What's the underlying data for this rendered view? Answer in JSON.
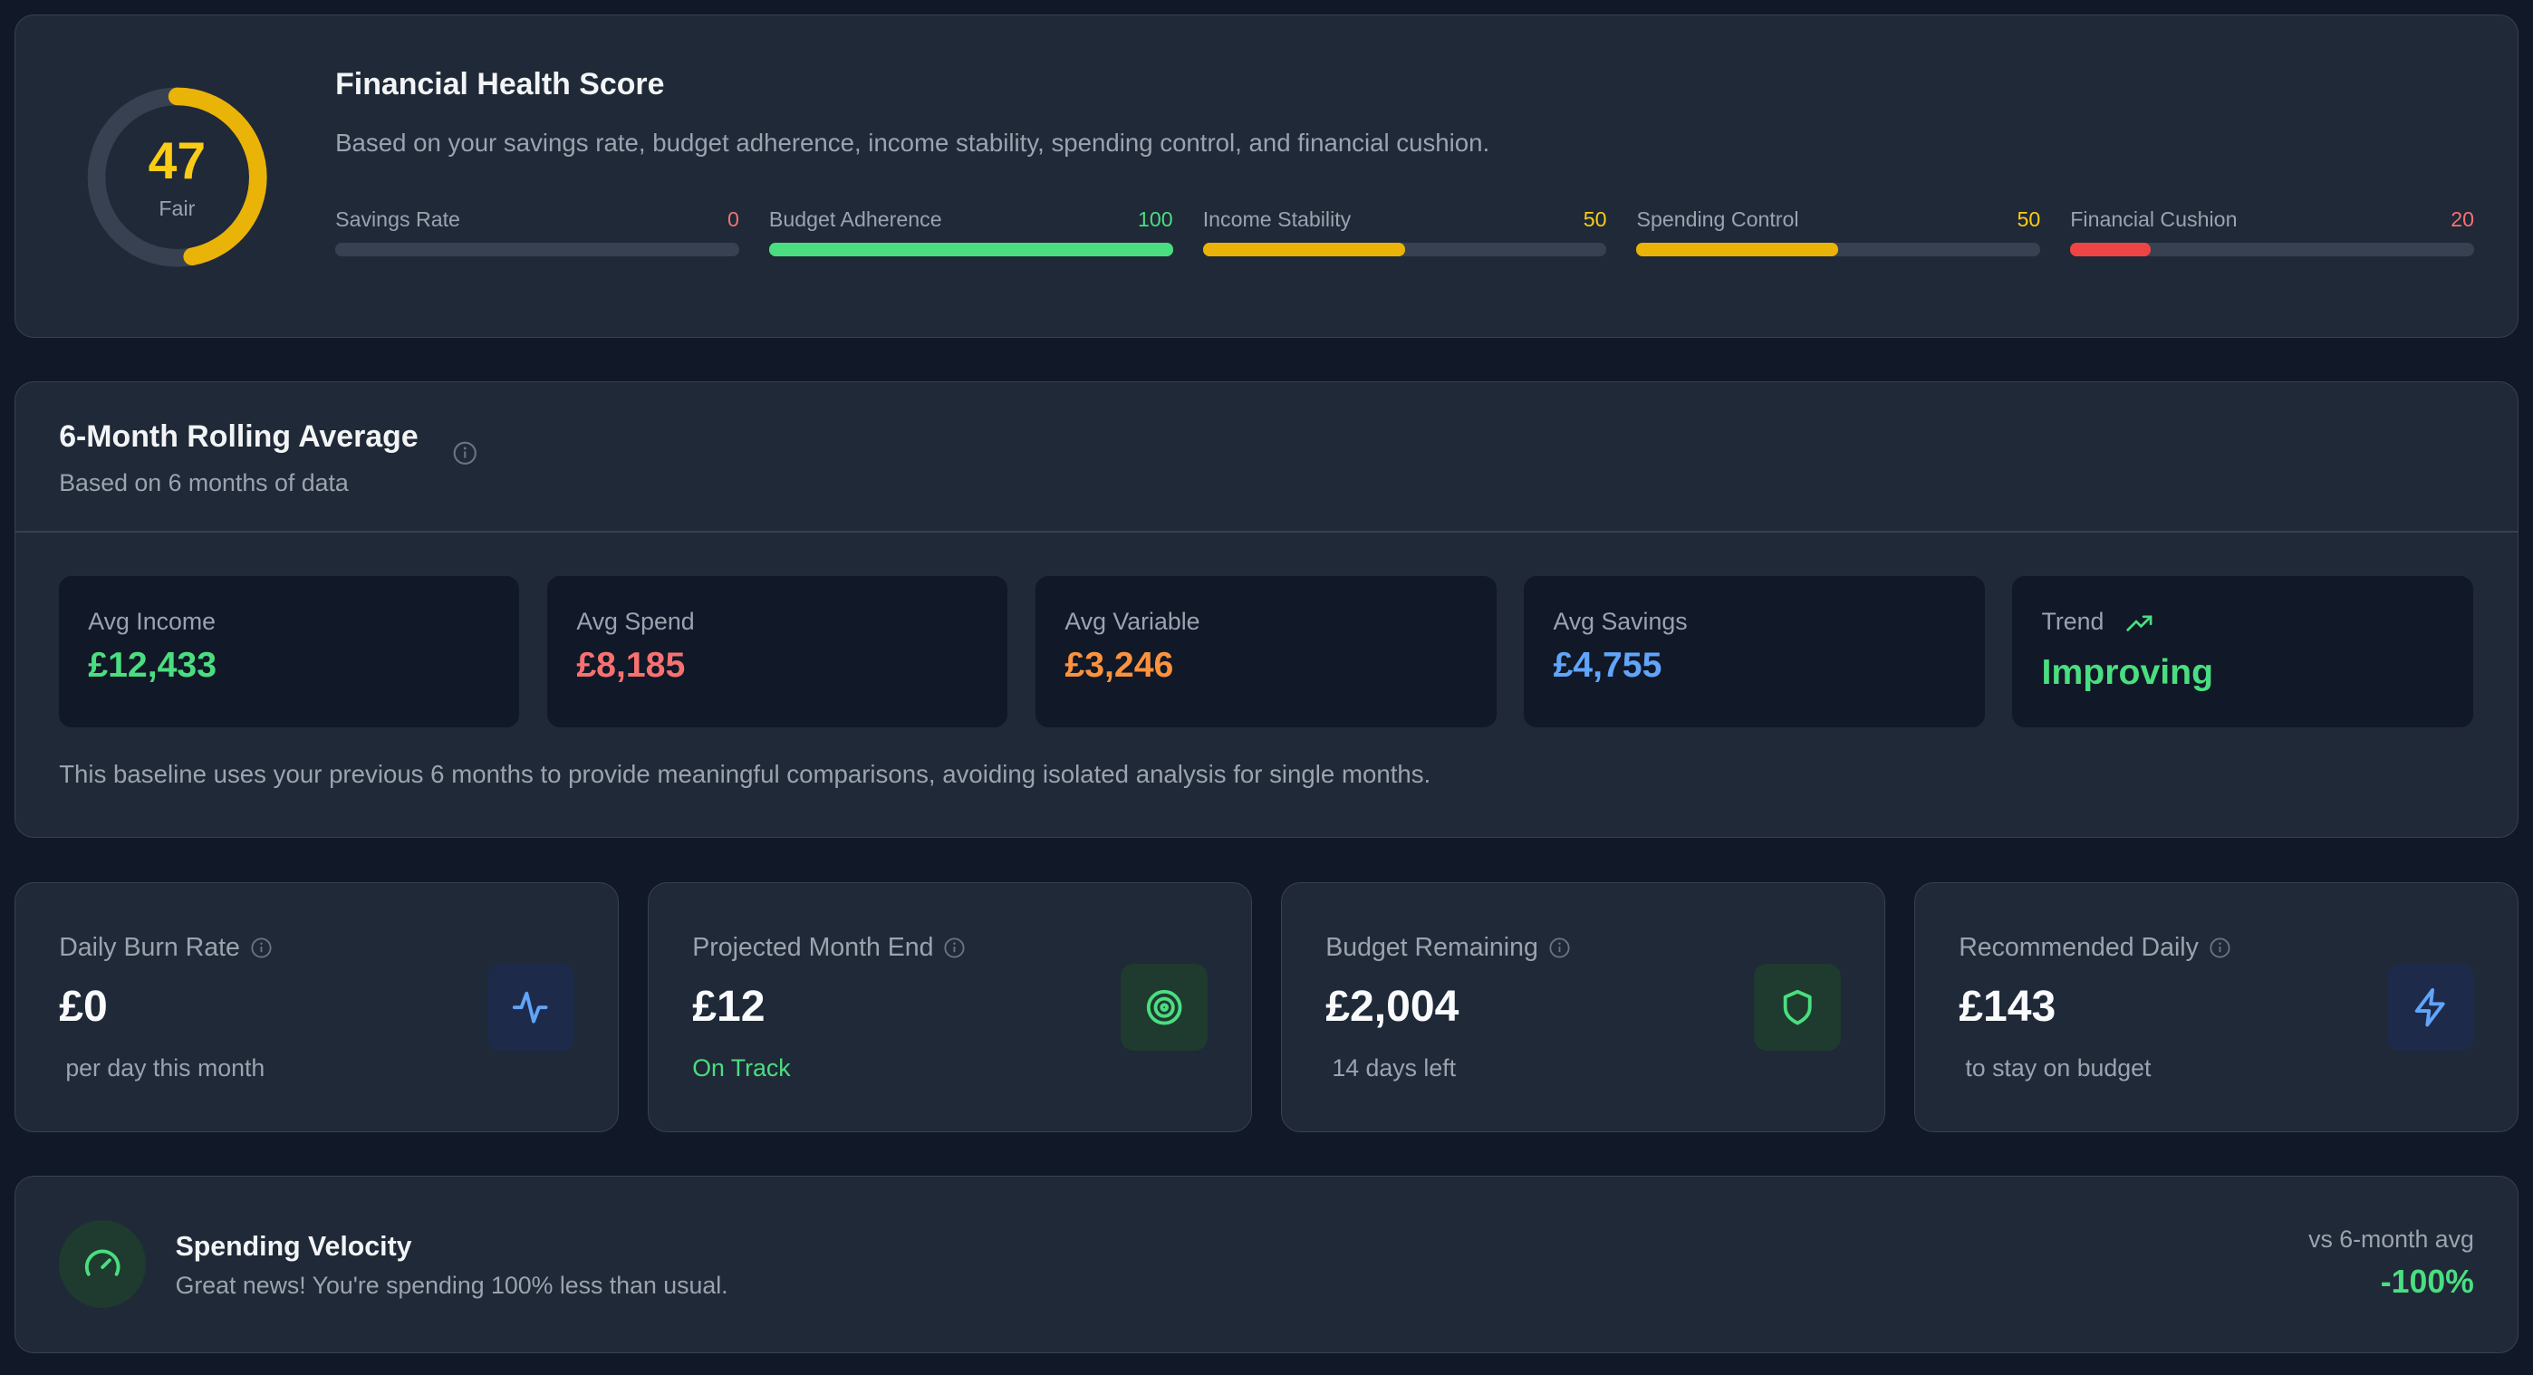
{
  "health": {
    "title": "Financial Health Score",
    "description": "Based on your savings rate, budget adherence, income stability, spending control, and financial cushion.",
    "score": "47",
    "score_value": 47,
    "rating": "Fair",
    "metrics": [
      {
        "label": "Savings Rate",
        "value": "0",
        "percent": 0,
        "color": "#f87171"
      },
      {
        "label": "Budget Adherence",
        "value": "100",
        "percent": 100,
        "color": "#4ade80"
      },
      {
        "label": "Income Stability",
        "value": "50",
        "percent": 50,
        "color": "#facc15"
      },
      {
        "label": "Spending Control",
        "value": "50",
        "percent": 50,
        "color": "#facc15"
      },
      {
        "label": "Financial Cushion",
        "value": "20",
        "percent": 20,
        "color": "#f87171"
      }
    ]
  },
  "rolling": {
    "title": "6-Month Rolling Average",
    "subtitle": "Based on 6 months of data",
    "cards": [
      {
        "label": "Avg Income",
        "value": "£12,433",
        "color": "#4ade80"
      },
      {
        "label": "Avg Spend",
        "value": "£8,185",
        "color": "#f87171"
      },
      {
        "label": "Avg Variable",
        "value": "£3,246",
        "color": "#fb923c"
      },
      {
        "label": "Avg Savings",
        "value": "£4,755",
        "color": "#60a5fa"
      },
      {
        "label": "Trend",
        "value": "Improving",
        "color": "#4ade80"
      }
    ],
    "footnote": "This baseline uses your previous 6 months to provide meaningful comparisons, avoiding isolated analysis for single months."
  },
  "stats": [
    {
      "title": "Daily Burn Rate",
      "value": "£0",
      "sub": "per day this month",
      "icon": "activity-icon"
    },
    {
      "title": "Projected Month End",
      "value": "£12",
      "sub": "On Track",
      "icon": "target-icon"
    },
    {
      "title": "Budget Remaining",
      "value": "£2,004",
      "sub": "14 days left",
      "icon": "shield-icon"
    },
    {
      "title": "Recommended Daily",
      "value": "£143",
      "sub": "to stay on budget",
      "icon": "zap-icon"
    }
  ],
  "velocity": {
    "title": "Spending Velocity",
    "message": "Great news! You're spending 100% less than usual.",
    "compare_label": "vs 6-month avg",
    "change": "-100%"
  }
}
